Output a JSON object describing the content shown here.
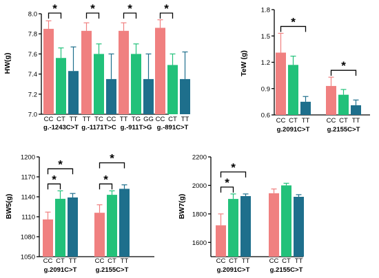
{
  "colors": {
    "CC": "#f08080",
    "CT": "#22c17a",
    "TT": "#1e6f8c",
    "axis": "#000000"
  },
  "chart_data": [
    {
      "type": "bar",
      "ylabel": "HW(g)",
      "ylim": [
        7.0,
        8.0
      ],
      "yticks": [
        "7.0",
        "7.2",
        "7.4",
        "7.6",
        "7.8",
        "8.0"
      ],
      "groups": [
        {
          "label": "g.-1243C>T",
          "bars": [
            {
              "genotype": "CC",
              "value": 7.85,
              "error": 0.08,
              "color": "#f08080"
            },
            {
              "genotype": "CT",
              "value": 7.56,
              "error": 0.1,
              "color": "#22c17a"
            },
            {
              "genotype": "TT",
              "value": 7.43,
              "error": 0.24,
              "color": "#1e6f8c"
            }
          ],
          "significance": [
            {
              "from": 0,
              "to": 1,
              "symbol": "*"
            }
          ]
        },
        {
          "label": "g.-1171T>C",
          "bars": [
            {
              "genotype": "TT",
              "value": 7.83,
              "error": 0.08,
              "color": "#f08080"
            },
            {
              "genotype": "TC",
              "value": 7.6,
              "error": 0.1,
              "color": "#22c17a"
            },
            {
              "genotype": "CC",
              "value": 7.35,
              "error": 0.25,
              "color": "#1e6f8c"
            }
          ],
          "significance": [
            {
              "from": 0,
              "to": 1,
              "symbol": "*"
            }
          ]
        },
        {
          "label": "g.-911T>G",
          "bars": [
            {
              "genotype": "TT",
              "value": 7.83,
              "error": 0.08,
              "color": "#f08080"
            },
            {
              "genotype": "TG",
              "value": 7.6,
              "error": 0.1,
              "color": "#22c17a"
            },
            {
              "genotype": "GG",
              "value": 7.35,
              "error": 0.25,
              "color": "#1e6f8c"
            }
          ],
          "significance": [
            {
              "from": 0,
              "to": 1,
              "symbol": "*"
            }
          ]
        },
        {
          "label": "g.-891C>T",
          "bars": [
            {
              "genotype": "CC",
              "value": 7.86,
              "error": 0.08,
              "color": "#f08080"
            },
            {
              "genotype": "CT",
              "value": 7.49,
              "error": 0.11,
              "color": "#22c17a"
            },
            {
              "genotype": "TT",
              "value": 7.35,
              "error": 0.27,
              "color": "#1e6f8c"
            }
          ],
          "significance": [
            {
              "from": 0,
              "to": 1,
              "symbol": "*"
            }
          ]
        }
      ]
    },
    {
      "type": "bar",
      "ylabel": "TeW (g)",
      "ylim": [
        0.6,
        1.8
      ],
      "yticks": [
        "0.6",
        "0.9",
        "1.2",
        "1.5",
        "1.8"
      ],
      "groups": [
        {
          "label": "g.2091C>T",
          "bars": [
            {
              "genotype": "CC",
              "value": 1.31,
              "error": 0.22,
              "color": "#f08080"
            },
            {
              "genotype": "CT",
              "value": 1.17,
              "error": 0.1,
              "color": "#22c17a"
            },
            {
              "genotype": "TT",
              "value": 0.75,
              "error": 0.06,
              "color": "#1e6f8c"
            }
          ],
          "significance": [
            {
              "from": 0,
              "to": 2,
              "symbol": "*"
            }
          ]
        },
        {
          "label": "g.2155C>T",
          "bars": [
            {
              "genotype": "CC",
              "value": 0.93,
              "error": 0.1,
              "color": "#f08080"
            },
            {
              "genotype": "CT",
              "value": 0.83,
              "error": 0.06,
              "color": "#22c17a"
            },
            {
              "genotype": "TT",
              "value": 0.71,
              "error": 0.06,
              "color": "#1e6f8c"
            }
          ],
          "significance": [
            {
              "from": 0,
              "to": 2,
              "symbol": "*"
            }
          ]
        }
      ]
    },
    {
      "type": "bar",
      "ylabel": "BW5(g)",
      "ylim": [
        1050,
        1200
      ],
      "yticks": [
        "1050",
        "1080",
        "1110",
        "1140",
        "1170",
        "1200"
      ],
      "groups": [
        {
          "label": "g.2091C>T",
          "bars": [
            {
              "genotype": "CC",
              "value": 1106,
              "error": 11,
              "color": "#f08080"
            },
            {
              "genotype": "CT",
              "value": 1137,
              "error": 12,
              "color": "#22c17a"
            },
            {
              "genotype": "TT",
              "value": 1139,
              "error": 6,
              "color": "#1e6f8c"
            }
          ],
          "significance": [
            {
              "from": 0,
              "to": 1,
              "symbol": "*"
            },
            {
              "from": 0,
              "to": 2,
              "symbol": "*"
            }
          ]
        },
        {
          "label": "g.2155C>T",
          "bars": [
            {
              "genotype": "CC",
              "value": 1116,
              "error": 12,
              "color": "#f08080"
            },
            {
              "genotype": "CT",
              "value": 1143,
              "error": 6,
              "color": "#22c17a"
            },
            {
              "genotype": "TT",
              "value": 1152,
              "error": 6,
              "color": "#1e6f8c"
            }
          ],
          "significance": [
            {
              "from": 0,
              "to": 1,
              "symbol": "*"
            },
            {
              "from": 0,
              "to": 2,
              "symbol": "*"
            }
          ]
        }
      ]
    },
    {
      "type": "bar",
      "ylabel": "BW7(g)",
      "ylim": [
        1500,
        2200
      ],
      "yticks": [
        "1600",
        "1800",
        "2000",
        "2200"
      ],
      "groups": [
        {
          "label": "g.2091C>T",
          "bars": [
            {
              "genotype": "CC",
              "value": 1720,
              "error": 80,
              "color": "#f08080"
            },
            {
              "genotype": "CT",
              "value": 1905,
              "error": 35,
              "color": "#22c17a"
            },
            {
              "genotype": "TT",
              "value": 1925,
              "error": 15,
              "color": "#1e6f8c"
            }
          ],
          "significance": [
            {
              "from": 0,
              "to": 1,
              "symbol": "*"
            },
            {
              "from": 0,
              "to": 2,
              "symbol": "*"
            }
          ]
        },
        {
          "label": "g.2155C>T",
          "bars": [
            {
              "genotype": "CC",
              "value": 1945,
              "error": 30,
              "color": "#f08080"
            },
            {
              "genotype": "CT",
              "value": 2000,
              "error": 15,
              "color": "#22c17a"
            },
            {
              "genotype": "TT",
              "value": 1920,
              "error": 15,
              "color": "#1e6f8c"
            }
          ],
          "significance": []
        }
      ]
    }
  ]
}
